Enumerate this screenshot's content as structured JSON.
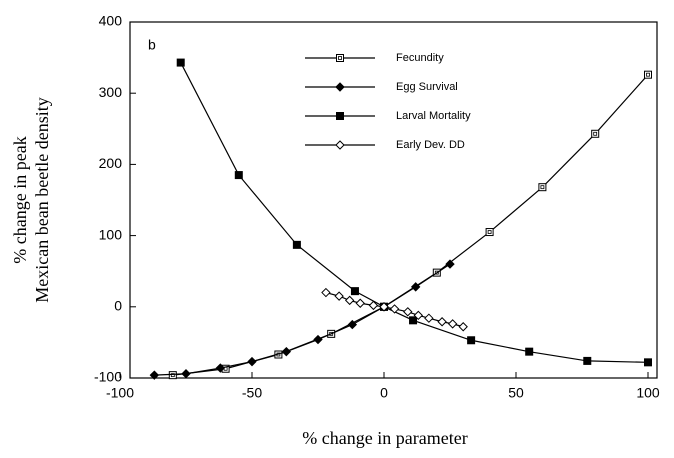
{
  "chart_data": {
    "type": "line",
    "annotation": "b",
    "xlabel": "% change in parameter",
    "ylabel": [
      "% change in peak",
      "Mexican bean beetle density"
    ],
    "xlim": [
      -100,
      100
    ],
    "xticks": [
      -100,
      -50,
      0,
      50,
      100
    ],
    "ylim": [
      -100,
      400
    ],
    "yticks": [
      -100,
      0,
      100,
      200,
      300,
      400
    ],
    "series": [
      {
        "name": "Fecundity",
        "color": "#000",
        "marker": "open-square",
        "x": [
          -80,
          -60,
          -40,
          -20,
          0,
          20,
          40,
          60,
          80,
          100
        ],
        "values": [
          -96,
          -87,
          -67,
          -38,
          0,
          48,
          105,
          168,
          243,
          326
        ]
      },
      {
        "name": "Egg Survival",
        "color": "#000",
        "marker": "filled-diamond",
        "x": [
          -87,
          -75,
          -62,
          -50,
          -37,
          -25,
          -12,
          0,
          12,
          25
        ],
        "values": [
          -96,
          -94,
          -86,
          -77,
          -63,
          -46,
          -25,
          0,
          28,
          60
        ]
      },
      {
        "name": "Larval Mortality",
        "color": "#000",
        "marker": "filled-square",
        "x": [
          -77,
          -55,
          -33,
          -11,
          0,
          11,
          33,
          55,
          77,
          100
        ],
        "values": [
          343,
          185,
          87,
          22,
          0,
          -19,
          -47,
          -63,
          -76,
          -78
        ]
      },
      {
        "name": "Early Dev. DD",
        "color": "#000",
        "marker": "open-diamond",
        "x": [
          -22,
          -17,
          -13,
          -9,
          -4,
          0,
          4,
          9,
          13,
          17,
          22,
          26,
          30
        ],
        "values": [
          20,
          15,
          9,
          5,
          2,
          0,
          -3,
          -7,
          -12,
          -16,
          -21,
          -24,
          -28
        ]
      }
    ]
  }
}
